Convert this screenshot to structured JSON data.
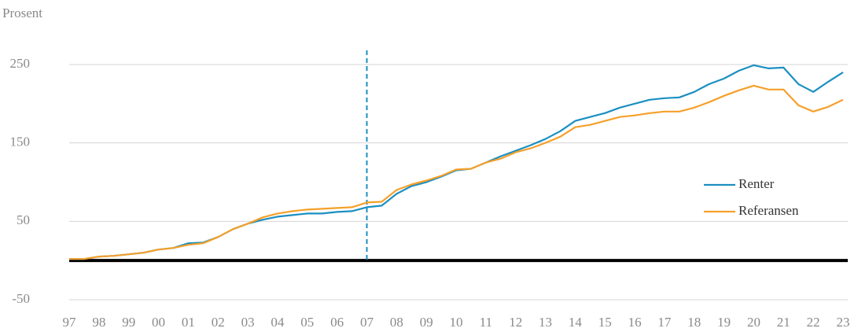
{
  "chart_data": {
    "type": "line",
    "y_label": "Prosent",
    "categories": [
      "97",
      null,
      "98",
      null,
      "99",
      null,
      "00",
      null,
      "01",
      null,
      "02",
      null,
      "03",
      null,
      "04",
      null,
      "05",
      null,
      "06",
      null,
      "07",
      null,
      "08",
      null,
      "09",
      null,
      "10",
      null,
      "11",
      null,
      "12",
      null,
      "13",
      null,
      "14",
      null,
      "15",
      null,
      "16",
      null,
      "17",
      null,
      "18",
      null,
      "19",
      null,
      "20",
      null,
      "21",
      null,
      "22",
      null,
      "23"
    ],
    "series": [
      {
        "name": "Renter",
        "color": "#1b8fc1",
        "values": [
          2,
          2,
          5,
          6,
          8,
          10,
          14,
          16,
          22,
          23,
          30,
          40,
          47,
          52,
          56,
          58,
          60,
          60,
          62,
          63,
          68,
          70,
          85,
          95,
          100,
          107,
          115,
          117,
          125,
          133,
          140,
          147,
          155,
          165,
          178,
          183,
          188,
          195,
          200,
          205,
          207,
          208,
          215,
          225,
          232,
          242,
          249,
          245,
          246,
          225,
          215,
          228,
          240
        ]
      },
      {
        "name": "Referansen",
        "color": "#f5a02a",
        "values": [
          2,
          2,
          5,
          6,
          8,
          10,
          14,
          16,
          20,
          22,
          30,
          40,
          47,
          55,
          60,
          63,
          65,
          66,
          67,
          68,
          74,
          75,
          90,
          97,
          102,
          108,
          116,
          117,
          125,
          130,
          138,
          143,
          150,
          158,
          170,
          173,
          178,
          183,
          185,
          188,
          190,
          190,
          195,
          202,
          210,
          217,
          223,
          218,
          218,
          198,
          190,
          196,
          205
        ]
      }
    ],
    "ylim": [
      -60,
      270
    ],
    "yticks": [
      -50,
      50,
      150,
      250
    ],
    "grid": true,
    "zero_line": true,
    "marker_x": "07",
    "marker_color": "#1b8fc1",
    "legend": "right"
  }
}
